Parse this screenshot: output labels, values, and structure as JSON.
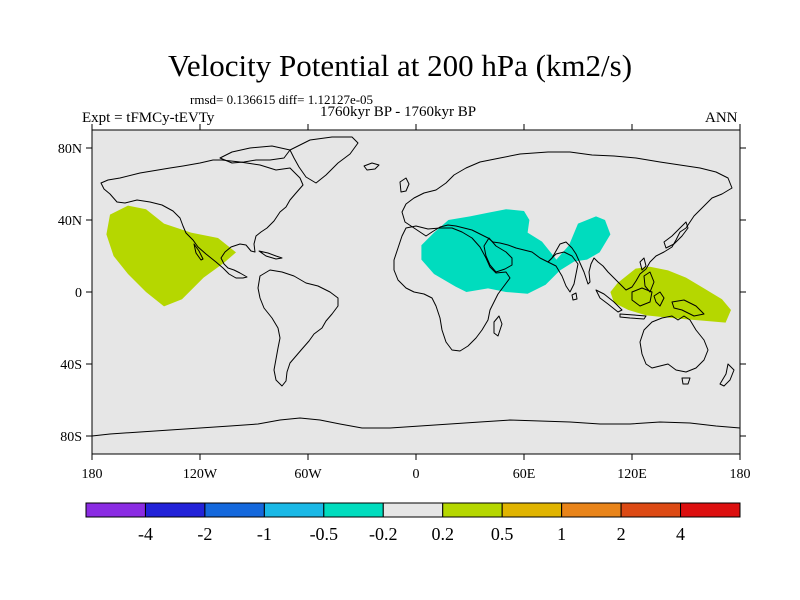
{
  "header": {
    "title": "Velocity Potential at 200 hPa (km2/s)",
    "stats": "rmsd= 0.136615 diff= 1.12127e-05",
    "experiment": "Expt = tFMCy-tEVTy",
    "period": "1760kyr BP - 1760kyr BP",
    "season": "ANN"
  },
  "map": {
    "lat_ticks": [
      {
        "lat": 80,
        "label": "80N"
      },
      {
        "lat": 40,
        "label": "40N"
      },
      {
        "lat": 0,
        "label": "0"
      },
      {
        "lat": -40,
        "label": "40S"
      },
      {
        "lat": -80,
        "label": "80S"
      }
    ],
    "lon_ticks": [
      {
        "lon": -180,
        "label": "180"
      },
      {
        "lon": -120,
        "label": "120W"
      },
      {
        "lon": -60,
        "label": "60W"
      },
      {
        "lon": 0,
        "label": "0"
      },
      {
        "lon": 60,
        "label": "60E"
      },
      {
        "lon": 120,
        "label": "120E"
      },
      {
        "lon": 180,
        "label": "180"
      }
    ],
    "background_color": "#e6e6e6",
    "anomaly_regions": [
      {
        "name": "eastern-pacific-positive",
        "range": "0.2 to 0.5",
        "color": "#b5d700",
        "outline": [
          [
            -170,
            43
          ],
          [
            -160,
            48
          ],
          [
            -150,
            46
          ],
          [
            -140,
            38
          ],
          [
            -125,
            33
          ],
          [
            -110,
            30
          ],
          [
            -100,
            22
          ],
          [
            -107,
            16
          ],
          [
            -118,
            8
          ],
          [
            -130,
            -4
          ],
          [
            -140,
            -8
          ],
          [
            -150,
            0
          ],
          [
            -160,
            10
          ],
          [
            -168,
            20
          ],
          [
            -172,
            32
          ]
        ]
      },
      {
        "name": "africa-indian-ocean-negative",
        "range": "-0.5 to -0.2",
        "color": "#00dcbe",
        "outline": [
          [
            3,
            26
          ],
          [
            10,
            33
          ],
          [
            18,
            40
          ],
          [
            30,
            42
          ],
          [
            40,
            44
          ],
          [
            50,
            46
          ],
          [
            60,
            45
          ],
          [
            63,
            40
          ],
          [
            62,
            33
          ],
          [
            70,
            28
          ],
          [
            78,
            18
          ],
          [
            85,
            26
          ],
          [
            90,
            38
          ],
          [
            100,
            42
          ],
          [
            105,
            40
          ],
          [
            108,
            32
          ],
          [
            102,
            22
          ],
          [
            95,
            18
          ],
          [
            88,
            17
          ],
          [
            80,
            12
          ],
          [
            72,
            4
          ],
          [
            62,
            -1
          ],
          [
            50,
            0
          ],
          [
            40,
            2
          ],
          [
            28,
            0
          ],
          [
            22,
            3
          ],
          [
            10,
            10
          ],
          [
            3,
            18
          ]
        ]
      },
      {
        "name": "maritime-continent-positive",
        "range": "0.2 to 0.5",
        "color": "#b5d700",
        "outline": [
          [
            112,
            5
          ],
          [
            122,
            13
          ],
          [
            130,
            14
          ],
          [
            140,
            12
          ],
          [
            150,
            8
          ],
          [
            160,
            2
          ],
          [
            170,
            -4
          ],
          [
            175,
            -10
          ],
          [
            172,
            -17
          ],
          [
            160,
            -16
          ],
          [
            148,
            -15
          ],
          [
            138,
            -14
          ],
          [
            128,
            -13
          ],
          [
            118,
            -10
          ],
          [
            110,
            -6
          ],
          [
            108,
            0
          ]
        ]
      }
    ]
  },
  "colorbar": {
    "colors": [
      "#8a2be2",
      "#2222d8",
      "#1468dc",
      "#1ab8e6",
      "#00dcbe",
      "#e6e6e6",
      "#b5d700",
      "#e0b400",
      "#e8841a",
      "#dc4a14",
      "#dc0f0f"
    ],
    "labels": [
      "-4",
      "-2",
      "-1",
      "-0.5",
      "-0.2",
      "0.2",
      "0.5",
      "1",
      "2",
      "4"
    ]
  }
}
